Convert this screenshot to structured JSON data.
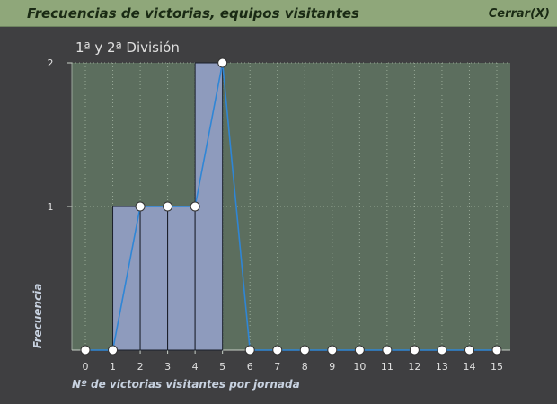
{
  "window": {
    "title": "Frecuencias de victorias, equipos visitantes",
    "close_label": "Cerrar(X)"
  },
  "colors": {
    "background": "#3f3f41",
    "titlebar": "#8fa77a",
    "plot_background": "#5c6e5e",
    "bar_fill": "#8e9bbd",
    "line": "#2f86d6",
    "marker": "#ffffff"
  },
  "chart_data": {
    "type": "bar",
    "title": "1ª y 2ª División",
    "xlabel": "Nº de victorias visitantes por jornada",
    "ylabel": "Frecuencia",
    "x": [
      0,
      1,
      2,
      3,
      4,
      5,
      6,
      7,
      8,
      9,
      10,
      11,
      12,
      13,
      14,
      15
    ],
    "values": [
      0,
      0,
      1,
      1,
      1,
      2,
      0,
      0,
      0,
      0,
      0,
      0,
      0,
      0,
      0,
      0
    ],
    "xlim": [
      0,
      15
    ],
    "ylim": [
      0,
      2
    ],
    "yticks": [
      1,
      2
    ],
    "grid": true,
    "overlay": "frequency polygon with markers"
  }
}
